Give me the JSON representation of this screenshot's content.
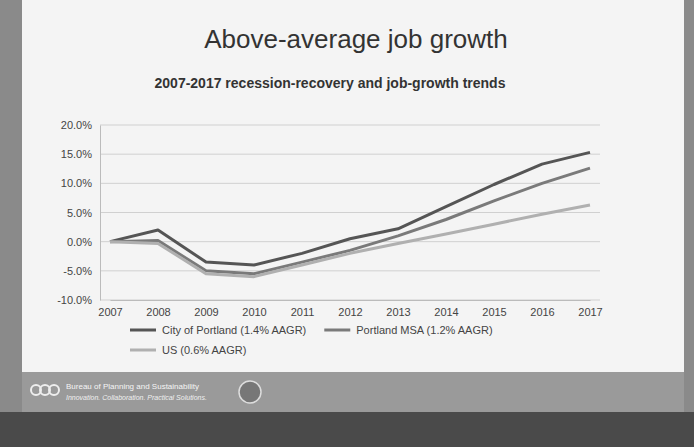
{
  "slide": {
    "title": "Above-average job growth",
    "footer": [
      "Bureau of Planning and Sustainability",
      "Innovation. Collaboration. Practical Solutions."
    ]
  },
  "chart_data": {
    "type": "line",
    "title": "2007-2017 recession-recovery and job-growth trends",
    "categories": [
      "2007",
      "2008",
      "2009",
      "2010",
      "2011",
      "2012",
      "2013",
      "2014",
      "2015",
      "2016",
      "2017"
    ],
    "series": [
      {
        "name": "City of Portland (1.4% AAGR)",
        "color": "#555555",
        "values": [
          0,
          2.0,
          -3.5,
          -4.0,
          -2.0,
          0.5,
          2.2,
          6.0,
          9.8,
          13.3,
          15.3
        ]
      },
      {
        "name": "Portland MSA (1.2% AAGR)",
        "color": "#7a7a7a",
        "values": [
          0,
          0.2,
          -5.0,
          -5.5,
          -3.5,
          -1.5,
          1.0,
          3.8,
          7.0,
          10.0,
          12.6
        ]
      },
      {
        "name": "US (0.6% AAGR)",
        "color": "#b0b0b0",
        "values": [
          0,
          -0.3,
          -5.5,
          -6.0,
          -4.0,
          -2.0,
          -0.3,
          1.3,
          3.0,
          4.7,
          6.3
        ]
      }
    ],
    "ylim": [
      -10,
      20
    ],
    "yticks": [
      {
        "value": -10,
        "label": "-10.0%"
      },
      {
        "value": -5,
        "label": "-5.0%"
      },
      {
        "value": 0,
        "label": "0.0%"
      },
      {
        "value": 5,
        "label": "5.0%"
      },
      {
        "value": 10,
        "label": "10.0%"
      },
      {
        "value": 15,
        "label": "15.0%"
      },
      {
        "value": 20,
        "label": "20.0%"
      }
    ],
    "grid": true,
    "legend": "bottom"
  }
}
